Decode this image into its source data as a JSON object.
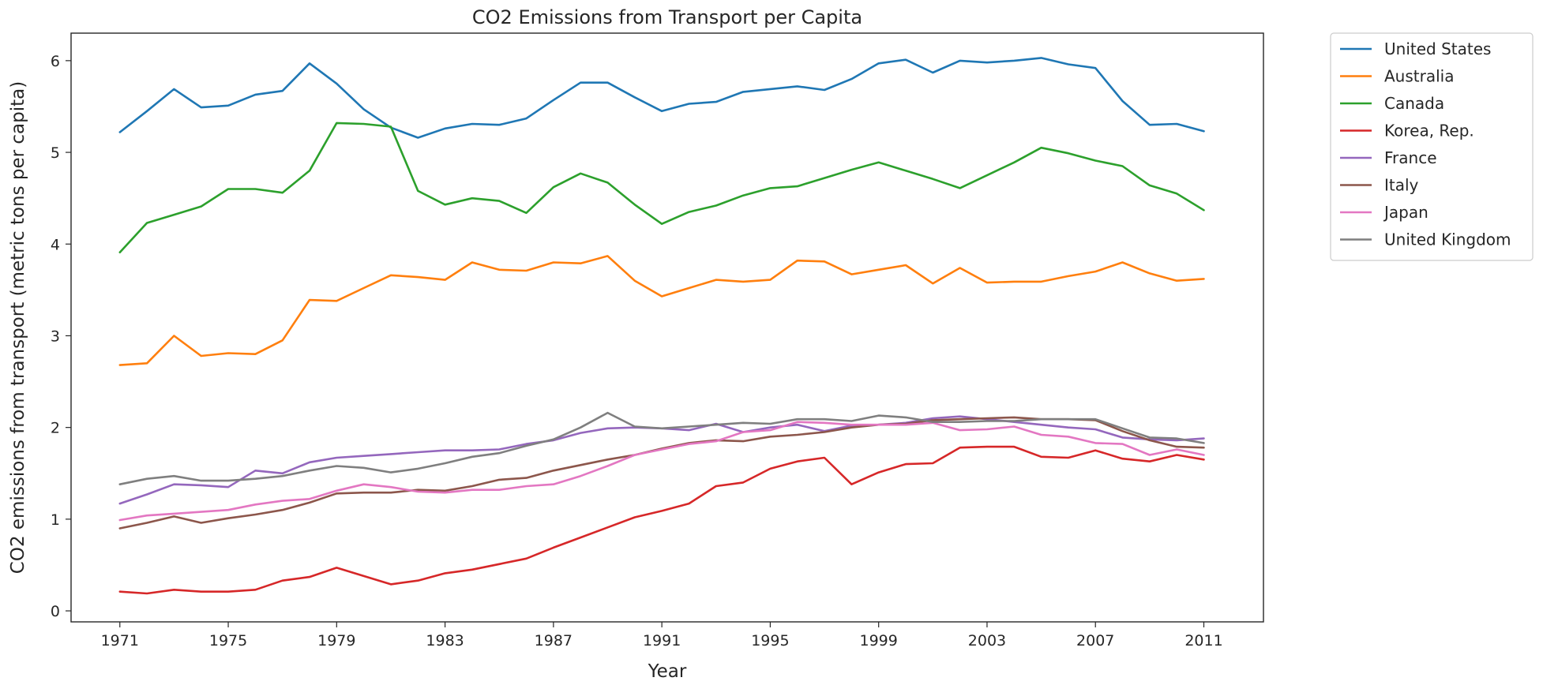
{
  "chart_data": {
    "type": "line",
    "title": "CO2 Emissions from Transport per Capita",
    "xlabel": "Year",
    "ylabel": "CO2 emissions from transport (metric tons per capita)",
    "xlim": [
      1969.2,
      1972.8
    ],
    "ylim": [
      -0.12,
      6.3
    ],
    "x_ticks": [
      1971,
      1975,
      1979,
      1983,
      1987,
      1991,
      1995,
      1999,
      2003,
      2007,
      2011
    ],
    "y_ticks": [
      0,
      1,
      2,
      3,
      4,
      5,
      6
    ],
    "grid": false,
    "legend_position": "outside-top-right",
    "x": [
      1971,
      1972,
      1973,
      1974,
      1975,
      1976,
      1977,
      1978,
      1979,
      1980,
      1981,
      1982,
      1983,
      1984,
      1985,
      1986,
      1987,
      1988,
      1989,
      1990,
      1991,
      1992,
      1993,
      1994,
      1995,
      1996,
      1997,
      1998,
      1999,
      2000,
      2001,
      2002,
      2003,
      2004,
      2005,
      2006,
      2007,
      2008,
      2009,
      2010,
      2011
    ],
    "series": [
      {
        "name": "United States",
        "color": "#1f77b4",
        "values": [
          5.22,
          5.45,
          5.69,
          5.49,
          5.51,
          5.63,
          5.67,
          5.97,
          5.75,
          5.47,
          5.27,
          5.16,
          5.26,
          5.31,
          5.3,
          5.37,
          5.57,
          5.76,
          5.76,
          5.6,
          5.45,
          5.53,
          5.55,
          5.66,
          5.69,
          5.72,
          5.68,
          5.8,
          5.97,
          6.01,
          5.87,
          6.0,
          5.98,
          6.0,
          6.03,
          5.96,
          5.92,
          5.56,
          5.3,
          5.31,
          5.23
        ]
      },
      {
        "name": "Australia",
        "color": "#ff7f0e",
        "values": [
          2.68,
          2.7,
          3.0,
          2.78,
          2.81,
          2.8,
          2.95,
          3.39,
          3.38,
          3.52,
          3.66,
          3.64,
          3.61,
          3.8,
          3.72,
          3.71,
          3.8,
          3.79,
          3.87,
          3.6,
          3.43,
          3.52,
          3.61,
          3.59,
          3.61,
          3.82,
          3.81,
          3.67,
          3.72,
          3.77,
          3.57,
          3.74,
          3.58,
          3.59,
          3.59,
          3.65,
          3.7,
          3.8,
          3.68,
          3.6,
          3.62
        ]
      },
      {
        "name": "Canada",
        "color": "#2ca02c",
        "values": [
          3.91,
          4.23,
          4.32,
          4.41,
          4.6,
          4.6,
          4.56,
          4.8,
          5.32,
          5.31,
          5.28,
          4.58,
          4.43,
          4.5,
          4.47,
          4.34,
          4.62,
          4.77,
          4.67,
          4.43,
          4.22,
          4.35,
          4.42,
          4.53,
          4.61,
          4.63,
          4.72,
          4.81,
          4.89,
          4.8,
          4.71,
          4.61,
          4.75,
          4.89,
          5.05,
          4.99,
          4.91,
          4.85,
          4.64,
          4.55,
          4.37
        ]
      },
      {
        "name": "Korea, Rep.",
        "color": "#d62728",
        "values": [
          0.21,
          0.19,
          0.23,
          0.21,
          0.21,
          0.23,
          0.33,
          0.37,
          0.47,
          0.38,
          0.29,
          0.33,
          0.41,
          0.45,
          0.51,
          0.57,
          0.69,
          0.8,
          0.91,
          1.02,
          1.09,
          1.17,
          1.36,
          1.4,
          1.55,
          1.63,
          1.67,
          1.38,
          1.51,
          1.6,
          1.61,
          1.78,
          1.79,
          1.79,
          1.68,
          1.67,
          1.75,
          1.66,
          1.63,
          1.7,
          1.65
        ]
      },
      {
        "name": "France",
        "color": "#9467bd",
        "values": [
          1.17,
          1.27,
          1.38,
          1.37,
          1.35,
          1.53,
          1.5,
          1.62,
          1.67,
          1.69,
          1.71,
          1.73,
          1.75,
          1.75,
          1.76,
          1.82,
          1.86,
          1.94,
          1.99,
          2.0,
          1.99,
          1.97,
          2.04,
          1.95,
          2.0,
          2.03,
          1.96,
          2.02,
          2.03,
          2.05,
          2.1,
          2.12,
          2.09,
          2.06,
          2.03,
          2.0,
          1.98,
          1.89,
          1.87,
          1.86,
          1.88
        ]
      },
      {
        "name": "Italy",
        "color": "#8c564b",
        "values": [
          0.9,
          0.96,
          1.03,
          0.96,
          1.01,
          1.05,
          1.1,
          1.18,
          1.28,
          1.29,
          1.29,
          1.32,
          1.31,
          1.36,
          1.43,
          1.45,
          1.53,
          1.59,
          1.65,
          1.7,
          1.77,
          1.83,
          1.86,
          1.85,
          1.9,
          1.92,
          1.95,
          2.0,
          2.03,
          2.04,
          2.08,
          2.09,
          2.1,
          2.11,
          2.09,
          2.09,
          2.08,
          1.96,
          1.86,
          1.79,
          1.78
        ]
      },
      {
        "name": "Japan",
        "color": "#e377c2",
        "values": [
          0.99,
          1.04,
          1.06,
          1.08,
          1.1,
          1.16,
          1.2,
          1.22,
          1.31,
          1.38,
          1.35,
          1.3,
          1.29,
          1.32,
          1.32,
          1.36,
          1.38,
          1.47,
          1.58,
          1.7,
          1.76,
          1.82,
          1.85,
          1.95,
          1.97,
          2.06,
          2.05,
          2.03,
          2.03,
          2.03,
          2.05,
          1.97,
          1.98,
          2.01,
          1.92,
          1.9,
          1.83,
          1.82,
          1.7,
          1.76,
          1.7
        ]
      },
      {
        "name": "United Kingdom",
        "color": "#7f7f7f",
        "values": [
          1.38,
          1.44,
          1.47,
          1.42,
          1.42,
          1.44,
          1.47,
          1.53,
          1.58,
          1.56,
          1.51,
          1.55,
          1.61,
          1.68,
          1.72,
          1.8,
          1.87,
          2.0,
          2.16,
          2.01,
          1.99,
          2.01,
          2.03,
          2.05,
          2.04,
          2.09,
          2.09,
          2.07,
          2.13,
          2.11,
          2.06,
          2.06,
          2.07,
          2.07,
          2.09,
          2.09,
          2.09,
          1.99,
          1.89,
          1.88,
          1.83
        ]
      }
    ]
  }
}
